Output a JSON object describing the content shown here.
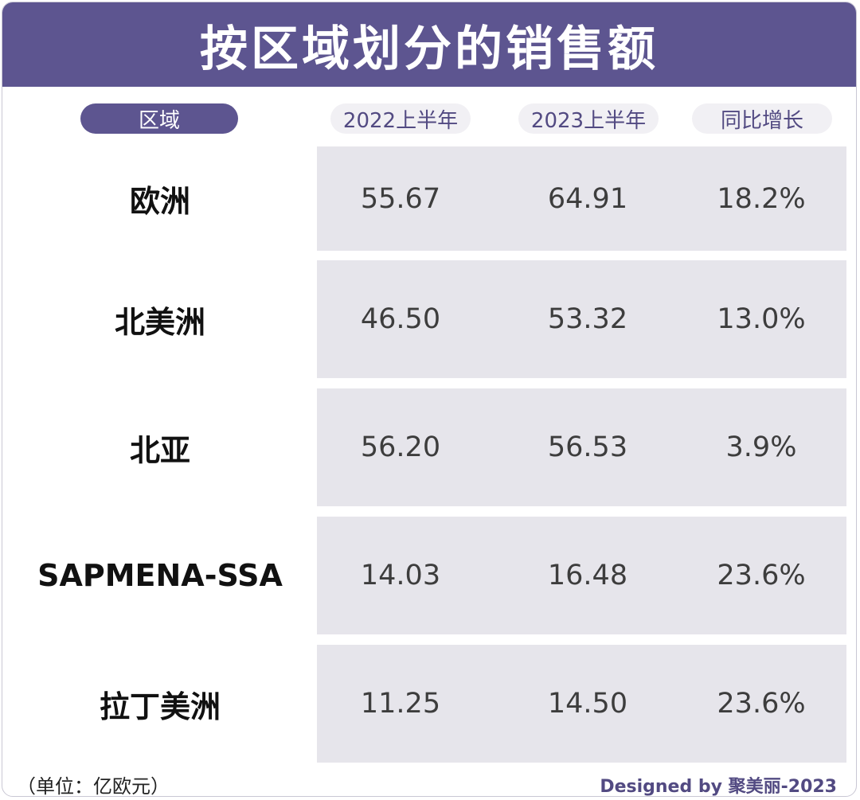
{
  "title": "按区域划分的销售额",
  "chart_data": {
    "type": "table",
    "title": "按区域划分的销售额",
    "columns": [
      "区域",
      "2022上半年",
      "2023上半年",
      "同比增长"
    ],
    "rows": [
      {
        "region": "欧洲",
        "h1_2022": "55.67",
        "h1_2023": "64.91",
        "growth": "18.2%"
      },
      {
        "region": "北美洲",
        "h1_2022": "46.50",
        "h1_2023": "53.32",
        "growth": "13.0%"
      },
      {
        "region": "北亚",
        "h1_2022": "56.20",
        "h1_2023": "56.53",
        "growth": "3.9%"
      },
      {
        "region": "SAPMENA-SSA",
        "h1_2022": "14.03",
        "h1_2023": "16.48",
        "growth": "23.6%"
      },
      {
        "region": "拉丁美洲",
        "h1_2022": "11.25",
        "h1_2023": "14.50",
        "growth": "23.6%"
      }
    ],
    "unit_note": "（单位：亿欧元）"
  },
  "footer": {
    "credit": "Designed by 聚美丽-2023"
  },
  "colors": {
    "accent": "#5d5590",
    "panel": "#e6e5eb",
    "header_light": "#f1f0f4"
  }
}
